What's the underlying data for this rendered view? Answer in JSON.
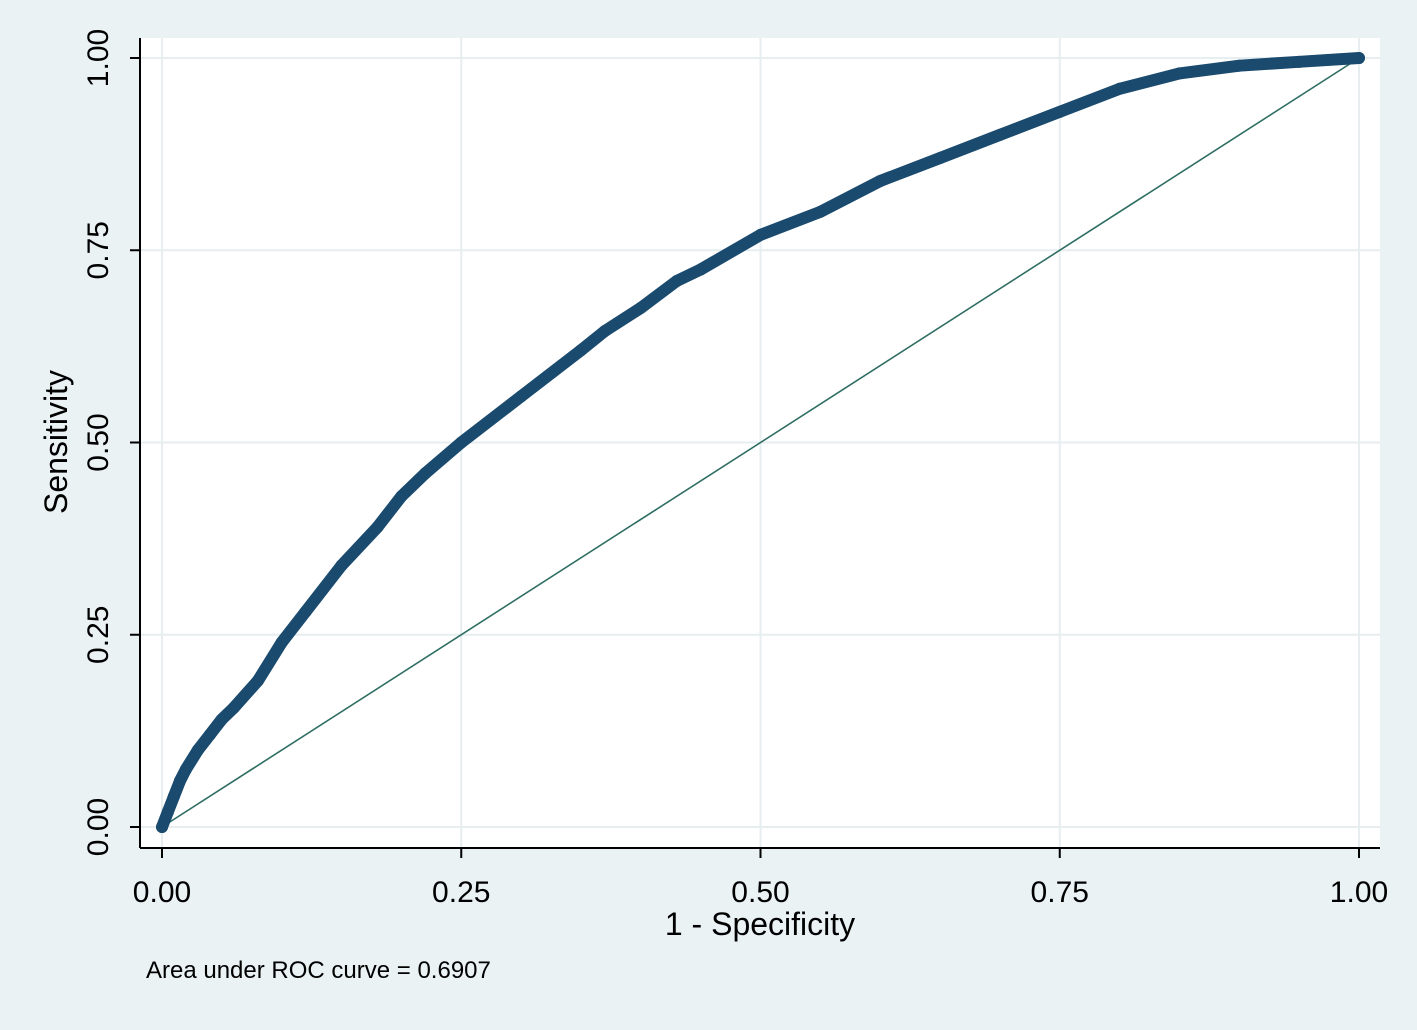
{
  "chart_data": {
    "type": "line",
    "xlabel": "1 - Specificity",
    "ylabel": "Sensitivity",
    "xlim": [
      0,
      1
    ],
    "ylim": [
      0,
      1
    ],
    "x_ticks": [
      "0.00",
      "0.25",
      "0.50",
      "0.75",
      "1.00"
    ],
    "y_ticks": [
      "0.00",
      "0.25",
      "0.50",
      "0.75",
      "1.00"
    ],
    "grid": true,
    "note": "Area under ROC curve = 0.6907",
    "colors": {
      "background": "#eaf2f3",
      "plot_background": "#ffffff",
      "grid": "#e6eef0",
      "roc_curve": "#1a4a6e",
      "reference_line": "#2f6e62"
    },
    "series": [
      {
        "x": [
          0,
          0.005,
          0.01,
          0.015,
          0.02,
          0.03,
          0.04,
          0.05,
          0.06,
          0.08,
          0.1,
          0.12,
          0.15,
          0.18,
          0.2,
          0.22,
          0.25,
          0.3,
          0.35,
          0.37,
          0.4,
          0.43,
          0.45,
          0.5,
          0.55,
          0.6,
          0.65,
          0.7,
          0.75,
          0.8,
          0.85,
          0.9,
          0.95,
          1.0
        ],
        "y": [
          0,
          0.02,
          0.04,
          0.06,
          0.075,
          0.1,
          0.12,
          0.14,
          0.155,
          0.19,
          0.24,
          0.28,
          0.34,
          0.39,
          0.43,
          0.46,
          0.5,
          0.56,
          0.62,
          0.645,
          0.675,
          0.71,
          0.725,
          0.77,
          0.8,
          0.84,
          0.87,
          0.9,
          0.93,
          0.96,
          0.98,
          0.99,
          0.995,
          1.0
        ]
      },
      {
        "x": [
          0,
          1
        ],
        "y": [
          0,
          1
        ]
      }
    ]
  }
}
